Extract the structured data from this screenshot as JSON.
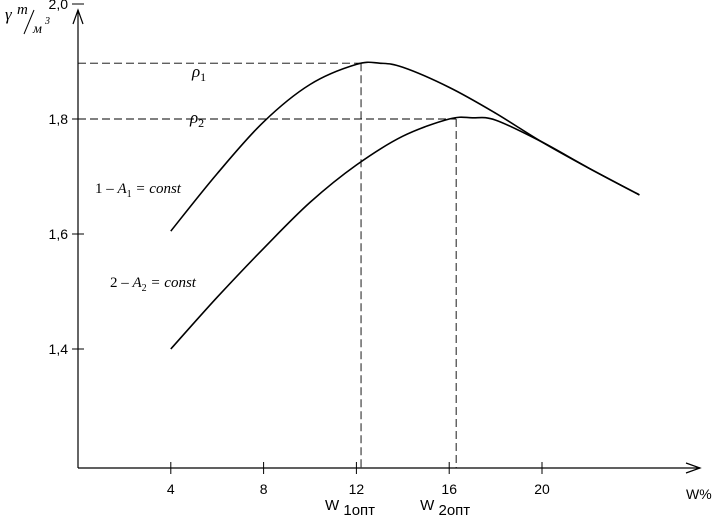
{
  "chart_data": {
    "type": "line",
    "ylabel": {
      "gamma": "γ",
      "unit_num": "т",
      "unit_den": "м",
      "unit_den_exp": "3"
    },
    "xlabel": "W%",
    "xlim": [
      0,
      26
    ],
    "ylim": [
      1.2,
      2.05
    ],
    "x_ticks": [
      4,
      8,
      12,
      16,
      20
    ],
    "y_ticks": [
      {
        "value": 1.4,
        "label": "1,4"
      },
      {
        "value": 1.6,
        "label": "1,6"
      },
      {
        "value": 1.8,
        "label": "1,8"
      },
      {
        "value": 2.0,
        "label": "2,0"
      }
    ],
    "series": [
      {
        "name": "1 – A1 = const",
        "label_prefix": "1 –",
        "label_var": "A",
        "label_sub": "1",
        "label_suffix": "= const",
        "peak_label": "ρ",
        "peak_sub": "1",
        "x": [
          4,
          6,
          8,
          10,
          12,
          13,
          14,
          16,
          18,
          20,
          22,
          24.2
        ],
        "y": [
          1.605,
          1.705,
          1.795,
          1.86,
          1.895,
          1.897,
          1.89,
          1.855,
          1.81,
          1.76,
          1.715,
          1.668
        ]
      },
      {
        "name": "2 – A2 = const",
        "label_prefix": "2 –",
        "label_var": "A",
        "label_sub": "2",
        "label_suffix": "= const",
        "peak_label": "ρ",
        "peak_sub": "2",
        "x": [
          4,
          6,
          8,
          10,
          12,
          14,
          16,
          17,
          18,
          20,
          22,
          24.2
        ],
        "y": [
          1.4,
          1.49,
          1.575,
          1.655,
          1.72,
          1.77,
          1.8,
          1.802,
          1.798,
          1.76,
          1.715,
          1.668
        ]
      }
    ],
    "optima": [
      {
        "x": 12.2,
        "y": 1.897,
        "label": "W",
        "sub": "1опт"
      },
      {
        "x": 16.3,
        "y": 1.8,
        "label": "W",
        "sub": "2опт"
      }
    ],
    "grid": false
  }
}
